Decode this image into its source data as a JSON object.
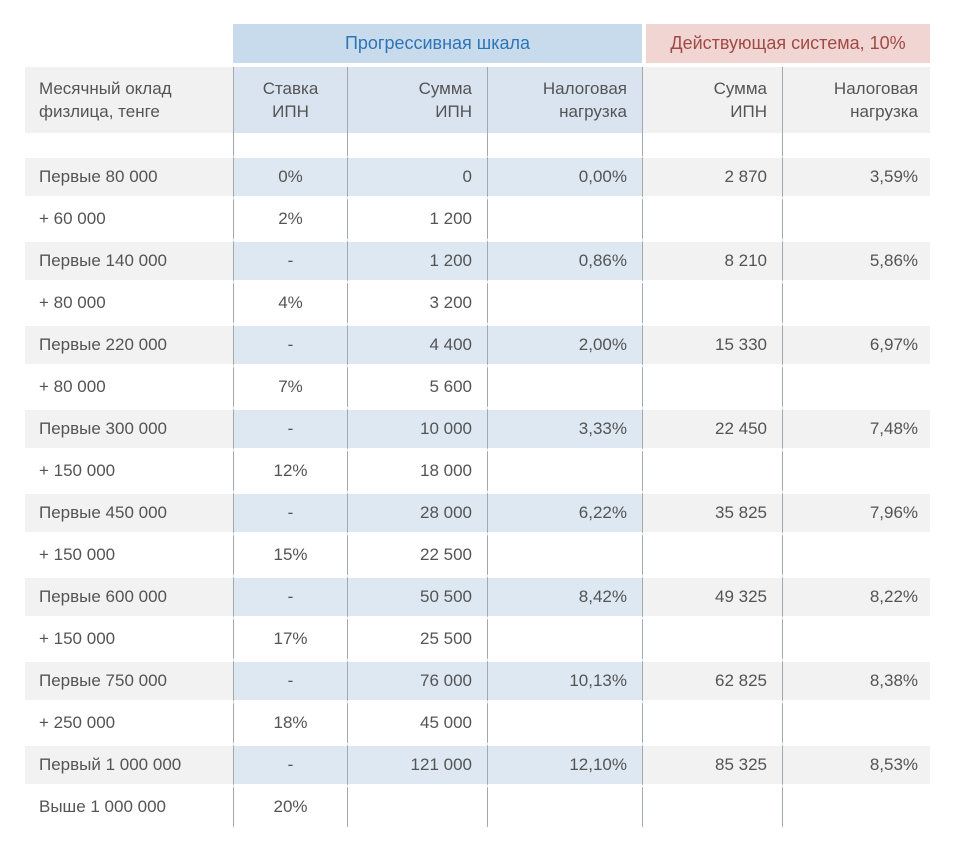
{
  "colors": {
    "progressive_band_bg": "#C8DBEC",
    "progressive_band_text": "#2E75B6",
    "current_band_bg": "#F0D5D3",
    "current_band_text": "#A14A45",
    "shaded_row_blue": "#DEE8F2",
    "shaded_row_gray": "#F2F2F2",
    "grid_line": "#A3A8AD",
    "body_text": "#545454"
  },
  "table": {
    "group_headers": [
      {
        "label": "Прогрессивная шкала",
        "span_columns": 3
      },
      {
        "label": "Действующая система, 10%",
        "span_columns": 2
      }
    ],
    "columns": [
      {
        "id": "salary",
        "label": "Месячный оклад\nфизлица, тенге"
      },
      {
        "id": "rate",
        "label": "Ставка\nИПН"
      },
      {
        "id": "sum",
        "label": "Сумма\nИПН"
      },
      {
        "id": "burden",
        "label": "Налоговая\nнагрузка"
      },
      {
        "id": "sum_current",
        "label": "Сумма\nИПН"
      },
      {
        "id": "burden_current",
        "label": "Налоговая\nнагрузка"
      }
    ],
    "rows": [
      {
        "salary": "Первые 80 000",
        "rate": "0%",
        "sum": "0",
        "burden": "0,00%",
        "sum_current": "2 870",
        "burden_current": "3,59%",
        "shaded": true
      },
      {
        "salary": "+ 60 000",
        "rate": "2%",
        "sum": "1 200",
        "burden": "",
        "sum_current": "",
        "burden_current": "",
        "shaded": false
      },
      {
        "salary": "Первые 140 000",
        "rate": "-",
        "sum": "1 200",
        "burden": "0,86%",
        "sum_current": "8 210",
        "burden_current": "5,86%",
        "shaded": true
      },
      {
        "salary": "+ 80 000",
        "rate": "4%",
        "sum": "3 200",
        "burden": "",
        "sum_current": "",
        "burden_current": "",
        "shaded": false
      },
      {
        "salary": "Первые 220 000",
        "rate": "-",
        "sum": "4 400",
        "burden": "2,00%",
        "sum_current": "15 330",
        "burden_current": "6,97%",
        "shaded": true
      },
      {
        "salary": "+ 80 000",
        "rate": "7%",
        "sum": "5 600",
        "burden": "",
        "sum_current": "",
        "burden_current": "",
        "shaded": false
      },
      {
        "salary": "Первые 300 000",
        "rate": "-",
        "sum": "10 000",
        "burden": "3,33%",
        "sum_current": "22 450",
        "burden_current": "7,48%",
        "shaded": true
      },
      {
        "salary": "+ 150 000",
        "rate": "12%",
        "sum": "18 000",
        "burden": "",
        "sum_current": "",
        "burden_current": "",
        "shaded": false
      },
      {
        "salary": "Первые 450 000",
        "rate": "-",
        "sum": "28 000",
        "burden": "6,22%",
        "sum_current": "35 825",
        "burden_current": "7,96%",
        "shaded": true
      },
      {
        "salary": "+ 150 000",
        "rate": "15%",
        "sum": "22 500",
        "burden": "",
        "sum_current": "",
        "burden_current": "",
        "shaded": false
      },
      {
        "salary": "Первые 600 000",
        "rate": "-",
        "sum": "50 500",
        "burden": "8,42%",
        "sum_current": "49 325",
        "burden_current": "8,22%",
        "shaded": true
      },
      {
        "salary": "+ 150 000",
        "rate": "17%",
        "sum": "25 500",
        "burden": "",
        "sum_current": "",
        "burden_current": "",
        "shaded": false
      },
      {
        "salary": "Первые 750 000",
        "rate": "-",
        "sum": "76 000",
        "burden": "10,13%",
        "sum_current": "62 825",
        "burden_current": "8,38%",
        "shaded": true
      },
      {
        "salary": "+ 250 000",
        "rate": "18%",
        "sum": "45 000",
        "burden": "",
        "sum_current": "",
        "burden_current": "",
        "shaded": false
      },
      {
        "salary": "Первый 1 000 000",
        "rate": "-",
        "sum": "121 000",
        "burden": "12,10%",
        "sum_current": "85 325",
        "burden_current": "8,53%",
        "shaded": true
      },
      {
        "salary": "Выше 1 000 000",
        "rate": "20%",
        "sum": "",
        "burden": "",
        "sum_current": "",
        "burden_current": "",
        "shaded": false
      }
    ]
  }
}
